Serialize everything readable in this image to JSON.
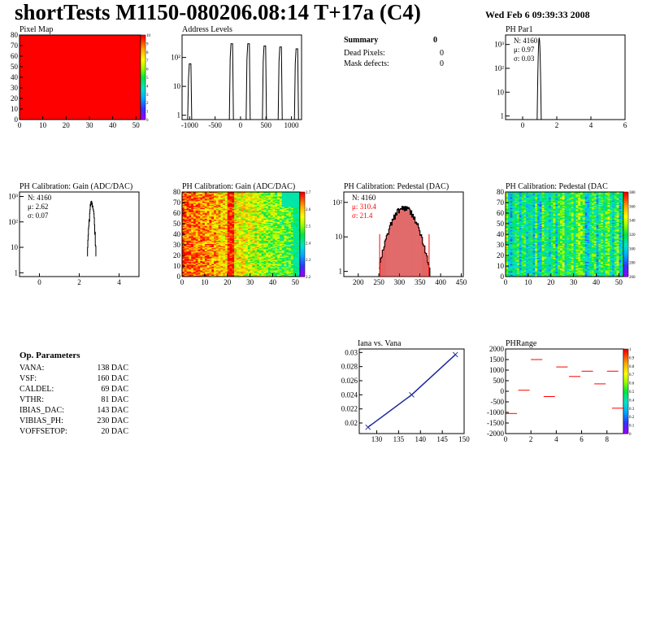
{
  "header": {
    "title": "shortTests M1150-080206.08:14 T+17a (C4)",
    "date": "Wed Feb  6 09:39:33 2008"
  },
  "summary": {
    "title": "Summary",
    "value": "0",
    "rows": [
      {
        "label": "Dead Pixels:",
        "value": "0"
      },
      {
        "label": "Mask defects:",
        "value": "0"
      }
    ]
  },
  "op_params": {
    "title": "Op. Parameters",
    "rows": [
      {
        "name": "VANA:",
        "value": "138 DAC"
      },
      {
        "name": "VSF:",
        "value": "160 DAC"
      },
      {
        "name": "CALDEL:",
        "value": "69 DAC"
      },
      {
        "name": "VTHR:",
        "value": "81 DAC"
      },
      {
        "name": "IBIAS_DAC:",
        "value": "143 DAC"
      },
      {
        "name": "VIBIAS_PH:",
        "value": "230 DAC"
      },
      {
        "name": "VOFFSETOP:",
        "value": "20 DAC"
      }
    ]
  },
  "colors": {
    "hist_line": "#000000",
    "stat_red": "#ff0000",
    "fit_blue": "#1e2a9c",
    "map_red": "#ff0000",
    "pedestal_fill": "#cc0000"
  },
  "chart_data": [
    {
      "id": "pixel-map",
      "type": "heatmap",
      "title": "Pixel Map",
      "xlim": [
        0,
        52
      ],
      "ylim": [
        0,
        80
      ],
      "xticks": [
        "0",
        "10",
        "20",
        "30",
        "40",
        "50"
      ],
      "yticks": [
        "0",
        "10",
        "20",
        "30",
        "40",
        "50",
        "60",
        "70",
        "80"
      ],
      "zticks": [
        "0",
        "1",
        "2",
        "3",
        "4",
        "5",
        "6",
        "7",
        "8",
        "9",
        "10"
      ],
      "uniform_value": 10,
      "palette": "rainbow"
    },
    {
      "id": "address-levels",
      "type": "bar",
      "title": "Address Levels",
      "log_y": true,
      "xlim": [
        -1150,
        1200
      ],
      "xticks": [
        "-1000",
        "-500",
        "0",
        "500",
        "1000"
      ],
      "yticks": [
        "1",
        "10",
        "10²"
      ],
      "peaks": [
        {
          "x": -1000,
          "height": 60
        },
        {
          "x": -180,
          "height": 300
        },
        {
          "x": 150,
          "height": 300
        },
        {
          "x": 470,
          "height": 250
        },
        {
          "x": 780,
          "height": 230
        },
        {
          "x": 1100,
          "height": 200
        }
      ]
    },
    {
      "id": "ph-par1",
      "type": "bar",
      "title": "PH Par1",
      "log_y": true,
      "xlim": [
        -1,
        6
      ],
      "xticks": [
        "0",
        "2",
        "4",
        "6"
      ],
      "yticks": [
        "1",
        "10",
        "10²",
        "10³"
      ],
      "stats": {
        "N": "N: 4160",
        "mean": "μ: 0.97",
        "sigma": "σ: 0.03"
      },
      "peak": {
        "x": 0.97,
        "sigma": 0.03,
        "height": 1900
      }
    },
    {
      "id": "ph-gain",
      "type": "bar",
      "title": "PH Calibration: Gain (ADC/DAC)",
      "log_y": true,
      "xlim": [
        -1,
        5
      ],
      "xticks": [
        "0",
        "2",
        "4"
      ],
      "yticks": [
        "1",
        "10",
        "10²",
        "10³"
      ],
      "stats": {
        "N": "N: 4160",
        "mean": "μ: 2.62",
        "sigma": "σ: 0.07"
      },
      "peak": {
        "x": 2.62,
        "sigma": 0.07,
        "height": 600
      }
    },
    {
      "id": "ph-gain-map",
      "type": "heatmap",
      "title": "PH Calibration: Gain (ADC/DAC)",
      "xlim": [
        0,
        52
      ],
      "ylim": [
        0,
        80
      ],
      "xticks": [
        "0",
        "10",
        "20",
        "30",
        "40",
        "50"
      ],
      "yticks": [
        "0",
        "10",
        "20",
        "30",
        "40",
        "50",
        "60",
        "70",
        "80"
      ],
      "zticks": [
        "2.2",
        "2.3",
        "2.4",
        "2.5",
        "2.6",
        "2.7"
      ],
      "zlim": [
        2.15,
        2.75
      ]
    },
    {
      "id": "ph-pedestal",
      "type": "bar",
      "title": "PH Calibration: Pedestal (DAC)",
      "log_y": true,
      "xlim": [
        165,
        455
      ],
      "xticks": [
        "200",
        "250",
        "300",
        "350",
        "400",
        "450"
      ],
      "yticks": [
        "1",
        "10",
        "10²"
      ],
      "stats": {
        "N": "N: 4160",
        "mean": "μ: 310.4",
        "sigma": "σ: 21.4"
      },
      "peak": {
        "x": 310.4,
        "sigma": 21.4,
        "height": 70
      },
      "range": [
        252,
        372
      ]
    },
    {
      "id": "ph-pedestal-map",
      "type": "heatmap",
      "title": "PH Calibration: Pedestal (DAC",
      "xlim": [
        0,
        52
      ],
      "ylim": [
        0,
        80
      ],
      "xticks": [
        "0",
        "10",
        "20",
        "30",
        "40",
        "50"
      ],
      "yticks": [
        "0",
        "10",
        "20",
        "30",
        "40",
        "50",
        "60",
        "70",
        "80"
      ],
      "zticks": [
        "260",
        "280",
        "300",
        "320",
        "340",
        "360",
        "380"
      ],
      "zlim": [
        250,
        390
      ]
    },
    {
      "id": "iana-vana",
      "type": "line",
      "title": "Iana vs. Vana",
      "xlim": [
        126,
        150
      ],
      "ylim": [
        0.0185,
        0.0305
      ],
      "xticks": [
        "130",
        "135",
        "140",
        "145",
        "150"
      ],
      "yticks": [
        "0.02",
        "0.022",
        "0.024",
        "0.026",
        "0.028",
        "0.03"
      ],
      "x": [
        128,
        138,
        148
      ],
      "y": [
        0.0194,
        0.024,
        0.0297
      ]
    },
    {
      "id": "ph-range",
      "type": "heatmap",
      "title": "PHRange",
      "xlim": [
        0,
        9.3
      ],
      "ylim": [
        -2000,
        2000
      ],
      "xticks": [
        "0",
        "2",
        "4",
        "6",
        "8"
      ],
      "yticks": [
        "-2000",
        "-1500",
        "-1000",
        "-500",
        "0",
        "500",
        "1000",
        "1500",
        "2000"
      ],
      "zticks": [
        "0",
        "0.1",
        "0.2",
        "0.3",
        "0.4",
        "0.5",
        "0.6",
        "0.7",
        "0.8",
        "0.9",
        "1"
      ],
      "segments": [
        {
          "x": 0,
          "y": -1050
        },
        {
          "x": 1,
          "y": 50
        },
        {
          "x": 2,
          "y": 1500
        },
        {
          "x": 3,
          "y": -250
        },
        {
          "x": 4,
          "y": 1150
        },
        {
          "x": 5,
          "y": 700
        },
        {
          "x": 6,
          "y": 950
        },
        {
          "x": 7,
          "y": 350
        },
        {
          "x": 8,
          "y": 950
        },
        {
          "x": 8.4,
          "y": -800
        }
      ]
    }
  ]
}
